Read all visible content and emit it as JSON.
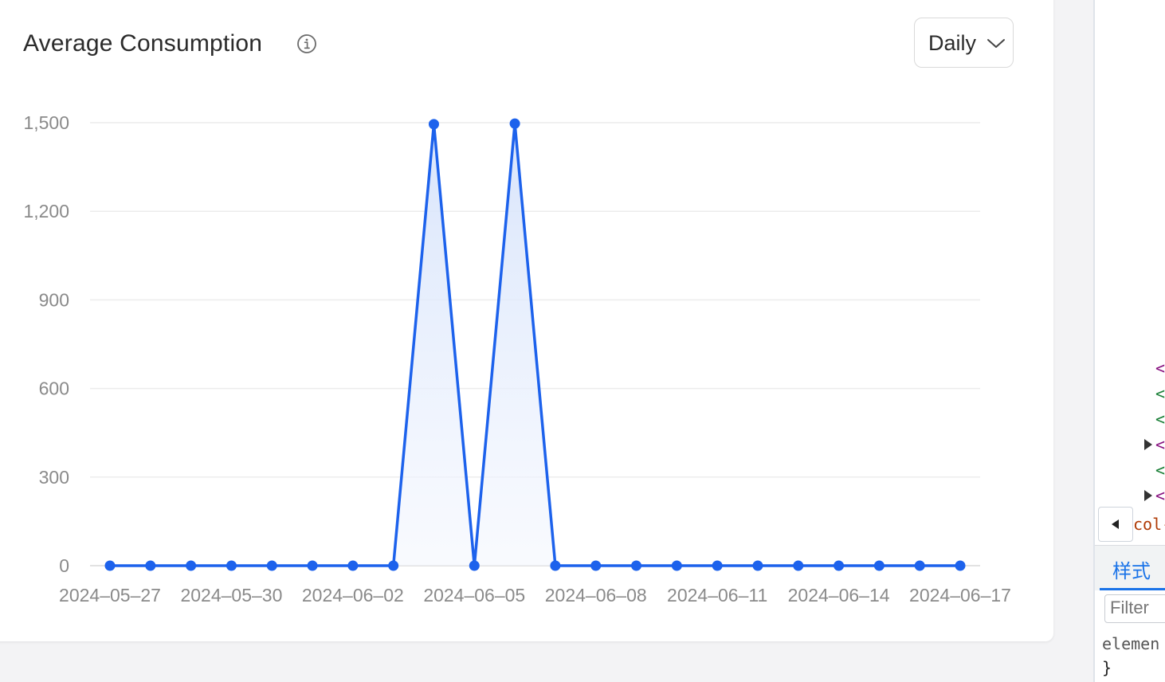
{
  "card": {
    "title": "Average Consumption",
    "interval_select": {
      "value": "Daily"
    }
  },
  "colors": {
    "line": "#1d62ec",
    "area_top": "#dbe6fb",
    "grid": "#ececec",
    "axis_text": "#8a8a8a",
    "text": "#2b2b2b"
  },
  "icons": {
    "info": "info-circle-icon",
    "chevron": "chevron-down-icon"
  },
  "chart_data": {
    "type": "area",
    "x": [
      "2024-05-27",
      "2024-05-28",
      "2024-05-29",
      "2024-05-30",
      "2024-05-31",
      "2024-06-01",
      "2024-06-02",
      "2024-06-03",
      "2024-06-04",
      "2024-06-05",
      "2024-06-06",
      "2024-06-07",
      "2024-06-08",
      "2024-06-09",
      "2024-06-10",
      "2024-06-11",
      "2024-06-12",
      "2024-06-13",
      "2024-06-14",
      "2024-06-15",
      "2024-06-16",
      "2024-06-17"
    ],
    "x_tick_labels": [
      "2024-05-27",
      "2024-05-30",
      "2024-06-02",
      "2024-06-05",
      "2024-06-08",
      "2024-06-11",
      "2024-06-14",
      "2024-06-17"
    ],
    "y_tick_labels": [
      "0",
      "300",
      "600",
      "900",
      "1,200",
      "1,500"
    ],
    "y_ticks": [
      0,
      300,
      600,
      900,
      1200,
      1500
    ],
    "ylim": [
      0,
      1500
    ],
    "series": [
      {
        "values": [
          0,
          0,
          0,
          0,
          0,
          0,
          0,
          0,
          1495,
          0,
          1497,
          0,
          0,
          0,
          0,
          0,
          0,
          0,
          0,
          0,
          0,
          0
        ]
      }
    ],
    "grid": true,
    "legend": "none"
  },
  "devtools": {
    "code_lines": [
      {
        "text": "<",
        "color": "#881280"
      },
      {
        "text": "<",
        "color": "#1a7f37"
      },
      {
        "text": "<",
        "color": "#1a7f37"
      },
      {
        "text": "<",
        "color": "#881280"
      },
      {
        "text": "<",
        "color": "#1a7f37"
      },
      {
        "text": "<",
        "color": "#881280"
      }
    ],
    "class_text": "col-",
    "styles_tab": "样式",
    "filter_placeholder": "Filter",
    "element_text": "elemen",
    "closing_brace": "}"
  }
}
